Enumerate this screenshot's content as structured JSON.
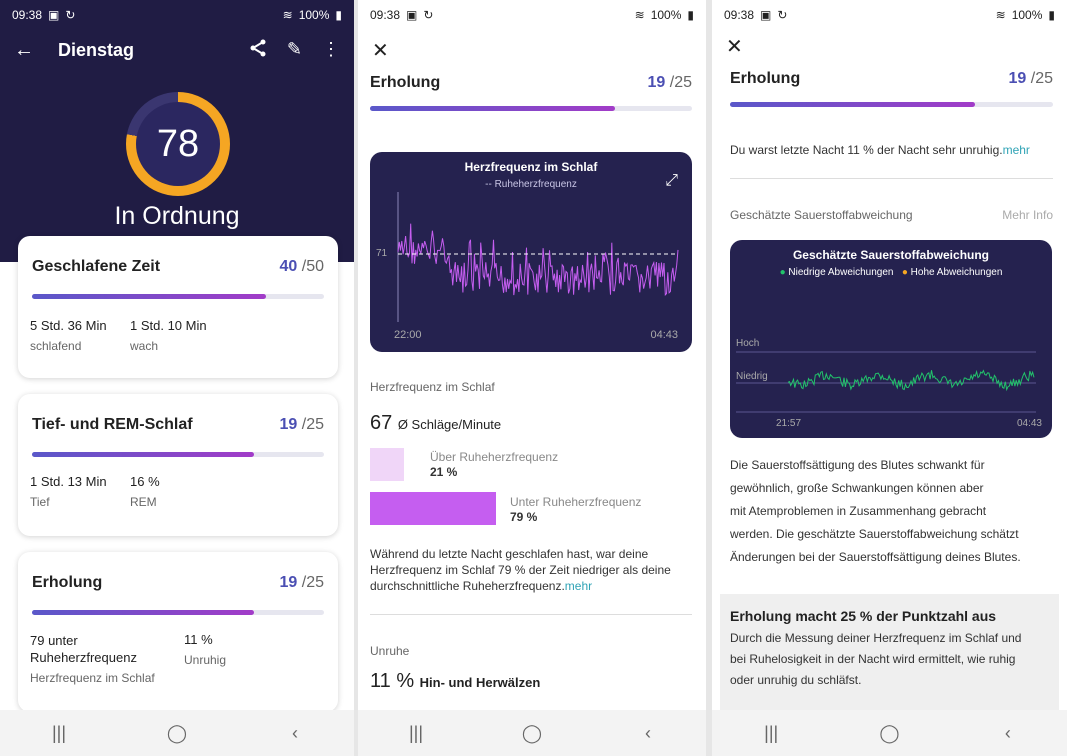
{
  "status": {
    "time": "09:38",
    "battery": "100%"
  },
  "panel1": {
    "title": "Dienstag",
    "score": "78",
    "score_fraction": 0.78,
    "status_word": "In Ordnung",
    "cards": [
      {
        "title": "Geschlafene Zeit",
        "score": "40",
        "max": "/50",
        "fill": 0.8,
        "stats": [
          {
            "value": "5 Std. 36 Min",
            "label": "schlafend"
          },
          {
            "value": "1 Std. 10 Min",
            "label": "wach"
          }
        ]
      },
      {
        "title": "Tief- und REM-Schlaf",
        "score": "19",
        "max": "/25",
        "fill": 0.76,
        "stats": [
          {
            "value": "1 Std. 13 Min",
            "label": "Tief"
          },
          {
            "value": "16 %",
            "label": "REM"
          }
        ]
      },
      {
        "title": "Erholung",
        "score": "19",
        "max": "/25",
        "fill": 0.76,
        "stats": [
          {
            "value": "79 unter Ruheherzfrequenz",
            "label": "Herzfrequenz im Schlaf"
          },
          {
            "value": "11 %",
            "label": "Unruhig"
          }
        ]
      }
    ]
  },
  "panel2": {
    "title": "Erholung",
    "score": "19",
    "max": "/25",
    "fill": 0.76,
    "chart": {
      "title": "Herzfrequenz im Schlaf",
      "legend": "-- Ruheherzfrequenz",
      "ref_value": "71",
      "x_start": "22:00",
      "x_end": "04:43"
    },
    "hr_label": "Herzfrequenz im Schlaf",
    "hr_value": "67",
    "hr_unit": "Ø Schläge/Minute",
    "above": {
      "label": "Über Ruheherzfrequenz",
      "value": "21 %",
      "fraction": 0.21
    },
    "below": {
      "label": "Unter Ruheherzfrequenz",
      "value": "79 %",
      "fraction": 0.79
    },
    "paragraph": "Während du letzte Nacht geschlafen hast, war deine Herzfrequenz im Schlaf 79 % der Zeit niedriger als deine durchschnittliche Ruheherzfrequenz.",
    "more": "mehr",
    "unrest_label": "Unruhe",
    "unrest_value": "11 %",
    "unrest_text": "Hin- und Herwälzen"
  },
  "panel3": {
    "title": "Erholung",
    "score": "19",
    "max": "/25",
    "fill": 0.76,
    "restless_text": "Du warst letzte Nacht 11 % der Nacht sehr unruhig.",
    "more": "mehr",
    "oxy_label": "Geschätzte Sauerstoffabweichung",
    "more_info": "Mehr Info",
    "chart": {
      "title": "Geschätzte Sauerstoffabweichung",
      "legend_low": "Niedrige Abweichungen",
      "legend_high": "Hohe Abweichungen",
      "y_high": "Hoch",
      "y_low": "Niedrig",
      "x_start": "21:57",
      "x_end": "04:43",
      "low_color": "#22c36b",
      "high_color": "#f5a623"
    },
    "paragraph_lines": [
      "Die Sauerstoffsättigung des Blutes schwankt für",
      "gewöhnlich, große Schwankungen können aber",
      "mit Atemproblemen in Zusammenhang gebracht",
      "werden. Die geschätzte Sauerstoffabweichung schätzt",
      "Änderungen bei der Sauerstoffsättigung deines Blutes."
    ],
    "box_title": "Erholung macht 25 % der Punktzahl aus",
    "box_lines": [
      "Durch die Messung deiner Herzfrequenz im Schlaf und",
      "bei Ruhelosigkeit in der Nacht wird ermittelt, wie ruhig",
      "oder unruhig du schläfst."
    ]
  },
  "colors": {
    "accent": "#4b4fb3",
    "dark": "#201c44",
    "ring": "#f5a623",
    "purple": "#c55ef0",
    "teal": "#2fa3b5"
  },
  "icons": [
    "back-arrow-icon",
    "share-icon",
    "edit-icon",
    "more-icon",
    "close-icon",
    "expand-icon",
    "recents-icon",
    "home-icon",
    "back-icon"
  ]
}
